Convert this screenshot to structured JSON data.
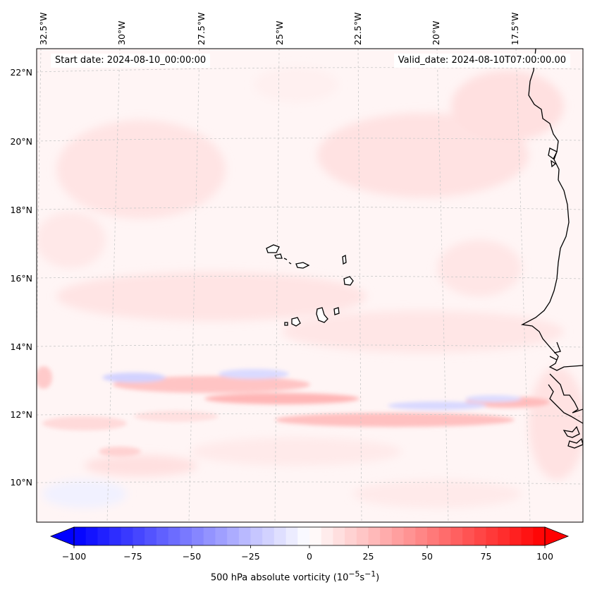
{
  "map": {
    "start_date_label": "Start date: 2024-08-10_00:00:00",
    "valid_date_label": "Valid_date: 2024-08-10T07:00:00.00",
    "longitude_labels": [
      "32.5°W",
      "30°W",
      "27.5°W",
      "25°W",
      "22.5°W",
      "20°W",
      "17.5°W"
    ],
    "latitude_labels": [
      "22°N",
      "20°N",
      "18°N",
      "16°N",
      "14°N",
      "12°N",
      "10°N"
    ],
    "features": [
      "Cape Verde islands",
      "West African coastline"
    ]
  },
  "colorbar": {
    "label_prefix": "500 hPa absolute vorticity (10",
    "label_exp1": "−5",
    "label_mid": "s",
    "label_exp2": "−1",
    "label_suffix": ")",
    "tick_labels": [
      "−100",
      "−75",
      "−50",
      "−25",
      "0",
      "25",
      "50",
      "75",
      "100"
    ],
    "min": -100,
    "max": 100,
    "step": 5,
    "extend": "both",
    "colormap": "bwr",
    "low_color": "#0000ff",
    "mid_color": "#ffffff",
    "high_color": "#ff0000"
  }
}
